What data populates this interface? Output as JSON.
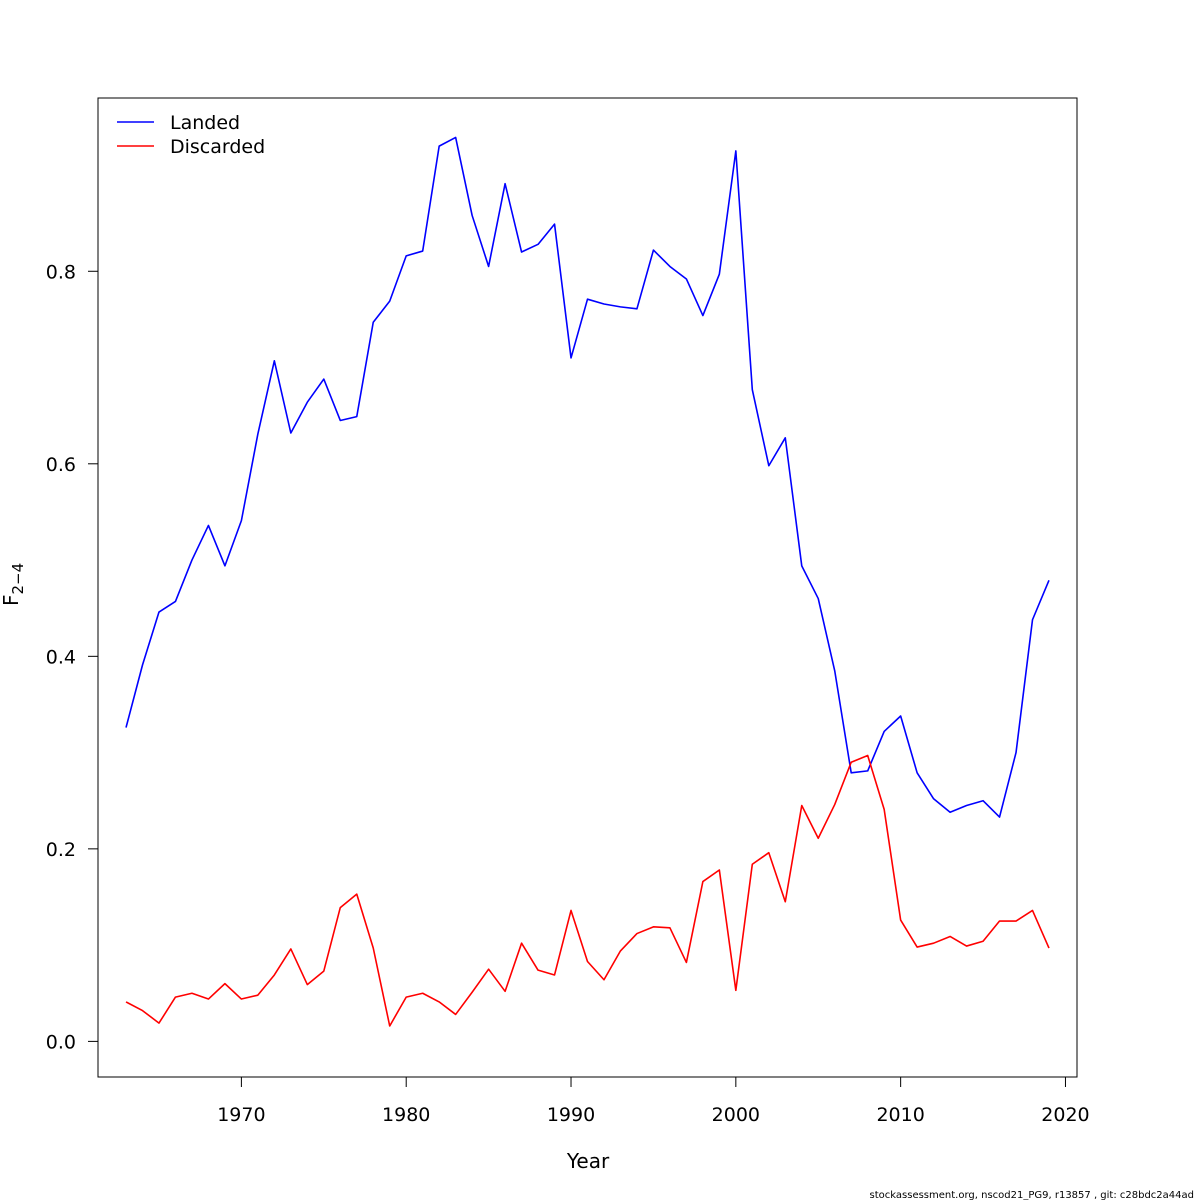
{
  "chart_data": {
    "type": "line",
    "xlabel": "Year",
    "ylabel": "F",
    "ylabel_sub": "2−4",
    "xlim": [
      1961.3,
      2020.7
    ],
    "ylim": [
      -0.037,
      0.98
    ],
    "xticks": [
      1970,
      1980,
      1990,
      2000,
      2010,
      2020
    ],
    "yticks": [
      0.0,
      0.2,
      0.4,
      0.6,
      0.8
    ],
    "ytick_labels": [
      "0.0",
      "0.2",
      "0.4",
      "0.6",
      "0.8"
    ],
    "legend_position": "top-left",
    "grid": false,
    "x": [
      1963,
      1964,
      1965,
      1966,
      1967,
      1968,
      1969,
      1970,
      1971,
      1972,
      1973,
      1974,
      1975,
      1976,
      1977,
      1978,
      1979,
      1980,
      1981,
      1982,
      1983,
      1984,
      1985,
      1986,
      1987,
      1988,
      1989,
      1990,
      1991,
      1992,
      1993,
      1994,
      1995,
      1996,
      1997,
      1998,
      1999,
      2000,
      2001,
      2002,
      2003,
      2004,
      2005,
      2006,
      2007,
      2008,
      2009,
      2010,
      2011,
      2012,
      2013,
      2014,
      2015,
      2016,
      2017,
      2018,
      2019
    ],
    "series": [
      {
        "name": "Landed",
        "color": "#0000FF",
        "values": [
          0.326,
          0.391,
          0.446,
          0.457,
          0.5,
          0.536,
          0.494,
          0.541,
          0.631,
          0.707,
          0.632,
          0.664,
          0.688,
          0.645,
          0.649,
          0.747,
          0.769,
          0.816,
          0.821,
          0.93,
          0.939,
          0.858,
          0.805,
          0.891,
          0.82,
          0.828,
          0.849,
          0.71,
          0.771,
          0.766,
          0.763,
          0.761,
          0.822,
          0.805,
          0.792,
          0.754,
          0.797,
          0.925,
          0.677,
          0.598,
          0.627,
          0.494,
          0.46,
          0.385,
          0.279,
          0.281,
          0.322,
          0.338,
          0.279,
          0.252,
          0.238,
          0.245,
          0.25,
          0.233,
          0.3,
          0.438,
          0.479
        ]
      },
      {
        "name": "Discarded",
        "color": "#FF0000",
        "values": [
          0.041,
          0.032,
          0.019,
          0.046,
          0.05,
          0.044,
          0.06,
          0.044,
          0.048,
          0.069,
          0.096,
          0.059,
          0.073,
          0.139,
          0.153,
          0.097,
          0.016,
          0.046,
          0.05,
          0.041,
          0.028,
          0.051,
          0.075,
          0.052,
          0.102,
          0.074,
          0.069,
          0.136,
          0.083,
          0.064,
          0.094,
          0.112,
          0.119,
          0.118,
          0.082,
          0.166,
          0.178,
          0.053,
          0.184,
          0.196,
          0.145,
          0.245,
          0.211,
          0.246,
          0.29,
          0.297,
          0.241,
          0.126,
          0.098,
          0.102,
          0.109,
          0.099,
          0.104,
          0.125,
          0.125,
          0.136,
          0.097
        ]
      }
    ]
  },
  "footer": "stockassessment.org, nscod21_PG9, r13857 , git: c28bdc2a44ad"
}
